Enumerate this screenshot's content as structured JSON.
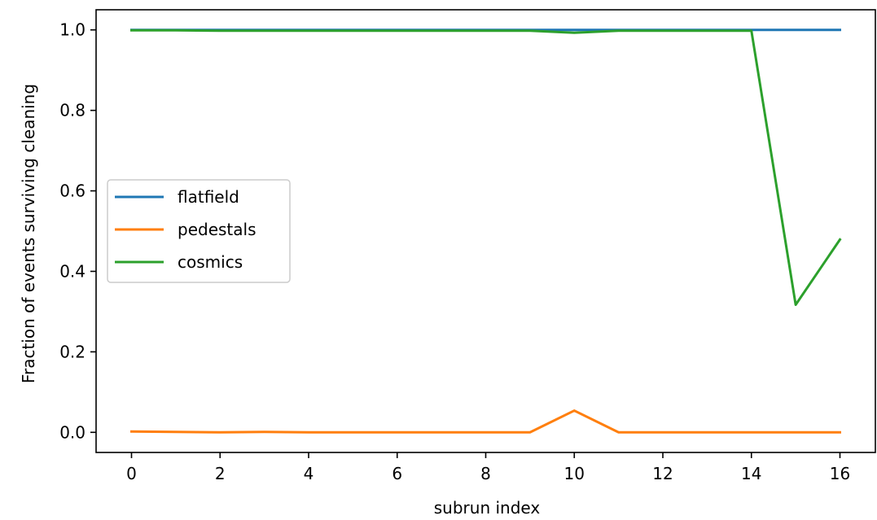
{
  "chart_data": {
    "type": "line",
    "xlabel": "subrun index",
    "ylabel": "Fraction of events surviving cleaning",
    "xlim": [
      -0.8,
      16.8
    ],
    "ylim": [
      -0.05,
      1.05
    ],
    "xticks": [
      0,
      2,
      4,
      6,
      8,
      10,
      12,
      14,
      16
    ],
    "xtick_labels": [
      "0",
      "2",
      "4",
      "6",
      "8",
      "10",
      "12",
      "14",
      "16"
    ],
    "yticks": [
      0.0,
      0.2,
      0.4,
      0.6,
      0.8,
      1.0
    ],
    "ytick_labels": [
      "0.0",
      "0.2",
      "0.4",
      "0.6",
      "0.8",
      "1.0"
    ],
    "grid": false,
    "legend_position": "center-left",
    "x": [
      0,
      1,
      2,
      3,
      4,
      5,
      6,
      7,
      8,
      9,
      10,
      11,
      12,
      13,
      14,
      15,
      16
    ],
    "series": [
      {
        "name": "flatfield",
        "color": "#1f77b4",
        "values": [
          1.0,
          1.0,
          1.0,
          1.0,
          1.0,
          1.0,
          1.0,
          1.0,
          1.0,
          1.0,
          1.0,
          1.0,
          1.0,
          1.0,
          1.0,
          1.0,
          1.0
        ]
      },
      {
        "name": "pedestals",
        "color": "#ff7f0e",
        "values": [
          0.002,
          0.001,
          0.0,
          0.001,
          0.0,
          0.0,
          0.0,
          0.0,
          0.0,
          0.0,
          0.054,
          0.0,
          0.0,
          0.0,
          0.0,
          0.0,
          0.0
        ]
      },
      {
        "name": "cosmics",
        "color": "#2ca02c",
        "values": [
          0.999,
          0.999,
          0.998,
          0.998,
          0.998,
          0.998,
          0.998,
          0.998,
          0.998,
          0.998,
          0.993,
          0.998,
          0.998,
          0.998,
          0.998,
          0.317,
          0.479
        ]
      }
    ]
  }
}
